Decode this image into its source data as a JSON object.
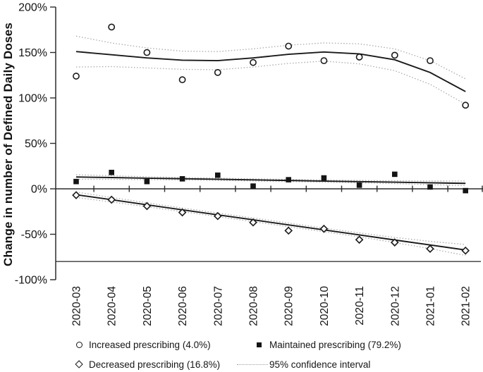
{
  "figure": {
    "ylabel": "Change in number of Defined Daily Doses"
  },
  "legend": {
    "increased": "Increased prescribing (4.0%)",
    "maintained": "Maintained prescribing (79.2%)",
    "decreased": "Decreased prescribing (16.8%)",
    "ci": "95% confidence interval"
  },
  "colors": {
    "line": "#1a1a1a",
    "ci_dotted": "#ababab",
    "axis": "#2b2b2b",
    "marker_fill_open": "#ffffff"
  },
  "chart_data": {
    "type": "scatter",
    "title": "",
    "xlabel": "",
    "ylabel": "Change in number of Defined Daily Doses",
    "ylim": [
      -100,
      200
    ],
    "grid": false,
    "legend_position": "bottom",
    "reference_line": -80,
    "y_ticks": [
      {
        "value": 200,
        "label": "200%"
      },
      {
        "value": 150,
        "label": "150%"
      },
      {
        "value": 100,
        "label": "100%"
      },
      {
        "value": 50,
        "label": "50%"
      },
      {
        "value": 0,
        "label": "0%"
      },
      {
        "value": -50,
        "label": "-50%"
      },
      {
        "value": -100,
        "label": "-100%"
      }
    ],
    "categories": [
      "2020-03",
      "2020-04",
      "2020-05",
      "2020-06",
      "2020-07",
      "2020-08",
      "2020-09",
      "2020-10",
      "2020-11",
      "2020-12",
      "2021-01",
      "2021-02"
    ],
    "series": [
      {
        "name": "Increased prescribing (4.0%)",
        "marker": "circle",
        "values": [
          124,
          178,
          150,
          120,
          128,
          139,
          157,
          141,
          145,
          147,
          141,
          92
        ],
        "fit": [
          151,
          147.5,
          144,
          141.5,
          141,
          144,
          148,
          150.5,
          148.5,
          142,
          128,
          107
        ],
        "ci_delta": [
          17,
          13,
          11,
          10,
          10,
          10,
          10,
          10,
          11,
          12,
          13,
          14
        ]
      },
      {
        "name": "Maintained prescribing (79.2%)",
        "marker": "square",
        "values": [
          8,
          18,
          8,
          11,
          15,
          3,
          10,
          12,
          4,
          16,
          2,
          -2
        ],
        "fit": [
          13,
          12.4,
          11.7,
          11.1,
          10.5,
          9.8,
          9.2,
          8.5,
          7.9,
          7.3,
          6.6,
          6
        ],
        "ci_delta": [
          2.5,
          2,
          1.6,
          1.3,
          1.2,
          1.2,
          1.2,
          1.2,
          1.3,
          1.6,
          2,
          2.5
        ]
      },
      {
        "name": "Decreased prescribing (16.8%)",
        "marker": "diamond",
        "values": [
          -7,
          -12,
          -19,
          -26,
          -30,
          -37,
          -46,
          -44,
          -56,
          -59,
          -66,
          -68
        ],
        "fit": [
          -6.5,
          -12.0,
          -17.6,
          -23.1,
          -28.6,
          -34.1,
          -39.7,
          -45.2,
          -50.7,
          -56.3,
          -61.8,
          -67.3
        ],
        "ci_delta": [
          3,
          2.5,
          2.2,
          2,
          2,
          2,
          2,
          2,
          2.2,
          2.8,
          4,
          6
        ]
      }
    ],
    "ci_label": "95% confidence interval"
  }
}
